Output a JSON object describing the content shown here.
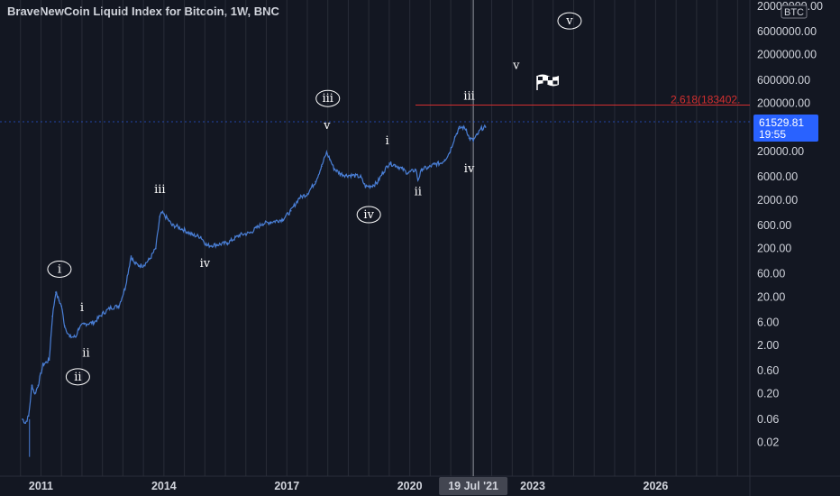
{
  "title": "BraveNewCoin Liquid Index for Bitcoin, 1W, BNC",
  "currency_badge": "BTC",
  "price_box": {
    "price": "61529.81",
    "countdown": "19:55",
    "color": "#2962ff"
  },
  "crosshair_label": "19 Jul '21",
  "fib_label": "2.618(183402.",
  "colors": {
    "background": "#131722",
    "series": "#4a7fd6",
    "fib_line": "#d32f2f",
    "grid": "#363a45",
    "axis_text": "#d1d4dc"
  },
  "chart_data": {
    "type": "line",
    "y_scale": "log",
    "xlim": [
      2010.0,
      2028.3
    ],
    "ylim": [
      0.004,
      27000000
    ],
    "x_ticks": [
      "2011",
      "2014",
      "2017",
      "2020",
      "2023",
      "2026"
    ],
    "x_tick_values": [
      2011,
      2014,
      2017,
      2020,
      2023,
      2026
    ],
    "y_ticks": [
      "20000000.00",
      "6000000.00",
      "2000000.00",
      "600000.00",
      "200000.00",
      "20000.00",
      "6000.00",
      "2000.00",
      "600.00",
      "200.00",
      "60.00",
      "20.00",
      "6.00",
      "2.00",
      "0.60",
      "0.20",
      "0.06",
      "0.02"
    ],
    "y_tick_values": [
      20000000,
      6000000,
      2000000,
      600000,
      200000,
      20000,
      6000,
      2000,
      600,
      200,
      60,
      20,
      6,
      2,
      0.6,
      0.2,
      0.06,
      0.02
    ],
    "series": [
      {
        "color": "#4a7fd6",
        "x": [
          2010.55,
          2010.62,
          2010.7,
          2010.78,
          2010.85,
          2010.93,
          2011.05,
          2011.2,
          2011.28,
          2011.36,
          2011.44,
          2011.5,
          2011.58,
          2011.7,
          2011.85,
          2011.92,
          2012.05,
          2012.3,
          2012.5,
          2012.7,
          2012.9,
          2013.05,
          2013.2,
          2013.28,
          2013.38,
          2013.5,
          2013.65,
          2013.8,
          2013.9,
          2013.95,
          2014.1,
          2014.2,
          2014.3,
          2014.5,
          2014.7,
          2014.9,
          2015.05,
          2015.3,
          2015.55,
          2015.85,
          2016.1,
          2016.4,
          2016.6,
          2016.9,
          2017.1,
          2017.3,
          2017.5,
          2017.7,
          2017.85,
          2017.97,
          2018.05,
          2018.15,
          2018.3,
          2018.45,
          2018.6,
          2018.8,
          2018.92,
          2019.05,
          2019.2,
          2019.35,
          2019.5,
          2019.65,
          2019.8,
          2019.95,
          2020.15,
          2020.2,
          2020.3,
          2020.45,
          2020.6,
          2020.75,
          2020.85,
          2020.97,
          2021.1,
          2021.2,
          2021.28,
          2021.38,
          2021.45,
          2021.55,
          2021.65,
          2021.75,
          2021.85
        ],
        "y": [
          0.06,
          0.05,
          0.07,
          0.3,
          0.2,
          0.3,
          0.8,
          1,
          8,
          25,
          17,
          13,
          5,
          3,
          3,
          4.5,
          5.5,
          6,
          9,
          12,
          13,
          30,
          140,
          100,
          90,
          90,
          120,
          200,
          900,
          1100,
          800,
          600,
          580,
          480,
          380,
          350,
          230,
          240,
          260,
          380,
          420,
          650,
          700,
          800,
          1200,
          2200,
          2700,
          4800,
          10000,
          19000,
          14000,
          9000,
          7000,
          6500,
          6500,
          6000,
          3800,
          3900,
          4500,
          7500,
          11500,
          10500,
          9000,
          7200,
          8500,
          5200,
          8800,
          9300,
          11000,
          11500,
          13500,
          19000,
          40000,
          60000,
          64000,
          58000,
          38000,
          34000,
          45000,
          60000,
          64000
        ]
      }
    ],
    "fib_level": 183402,
    "annotations": [
      {
        "text": "i",
        "x": 2011.45,
        "y": 75,
        "circled": true
      },
      {
        "text": "i",
        "x": 2012.0,
        "y": 12,
        "circled": false
      },
      {
        "text": "ii",
        "x": 2012.1,
        "y": 1.4,
        "circled": false
      },
      {
        "text": "ii",
        "x": 2011.9,
        "y": 0.45,
        "circled": true
      },
      {
        "text": "iii",
        "x": 2013.9,
        "y": 3300,
        "circled": false
      },
      {
        "text": "iv",
        "x": 2015.0,
        "y": 100,
        "circled": false
      },
      {
        "text": "iii",
        "x": 2018.0,
        "y": 250000,
        "circled": true
      },
      {
        "text": "v",
        "x": 2017.98,
        "y": 70000,
        "circled": false
      },
      {
        "text": "iv",
        "x": 2019.0,
        "y": 1000,
        "circled": true
      },
      {
        "text": "i",
        "x": 2019.45,
        "y": 34000,
        "circled": false
      },
      {
        "text": "ii",
        "x": 2020.2,
        "y": 3000,
        "circled": false
      },
      {
        "text": "iii",
        "x": 2021.45,
        "y": 280000,
        "circled": false
      },
      {
        "text": "iv",
        "x": 2021.45,
        "y": 9000,
        "circled": false
      },
      {
        "text": "v",
        "x": 2022.6,
        "y": 1200000,
        "circled": false
      },
      {
        "text": "v",
        "x": 2023.9,
        "y": 10000000,
        "circled": true
      }
    ]
  }
}
